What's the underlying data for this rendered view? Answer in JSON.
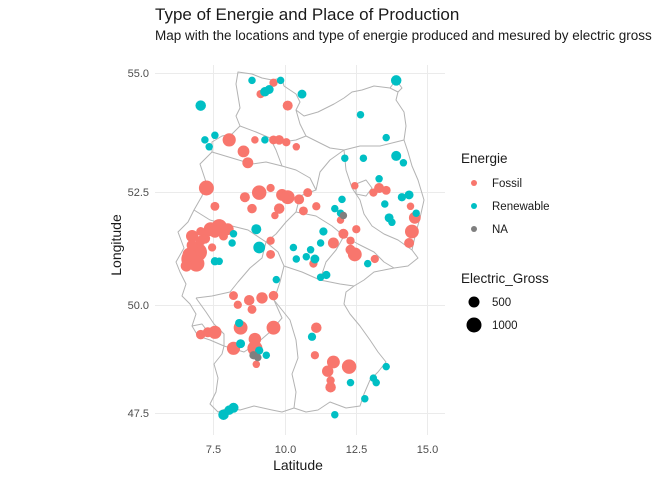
{
  "title": "Type of Energie and Place of Production",
  "subtitle": "Map with the locations and type of energie produced and mesured by electric gross",
  "chart_data": {
    "type": "scatter",
    "title": "Type of Energie and Place of Production",
    "subtitle": "Map with the locations and type of energie produced and mesured by electric gross",
    "xlabel": "Latitude",
    "ylabel": "Longitude",
    "xlim": [
      5.6,
      15.5
    ],
    "ylim": [
      47.0,
      55.3
    ],
    "x_ticks": [
      7.5,
      10.0,
      12.5,
      15.0
    ],
    "x_tick_labels": [
      "7.5",
      "10.0",
      "12.5",
      "15.0"
    ],
    "y_ticks": [
      47.5,
      50.0,
      52.5,
      55.0
    ],
    "y_tick_labels": [
      "47.5",
      "50.0",
      "52.5",
      "55.0"
    ],
    "grid": true,
    "legend_position": "right",
    "colors": {
      "Fossil": "#F8766D",
      "Renewable": "#00BFC4",
      "NA": "#7F7F7F",
      "border": "#b3b3b3"
    },
    "legends": {
      "color": {
        "title": "Energie",
        "entries": [
          "Fossil",
          "Renewable",
          "NA"
        ]
      },
      "size": {
        "title": "Electric_Gross",
        "entries": [
          {
            "label": "500",
            "value": 500
          },
          {
            "label": "1000",
            "value": 1000
          }
        ]
      }
    },
    "series": [
      {
        "name": "Fossil",
        "points": [
          {
            "x": 6.7,
            "y": 50.95,
            "v": 1800
          },
          {
            "x": 6.95,
            "y": 51.1,
            "v": 1700
          },
          {
            "x": 6.9,
            "y": 50.85,
            "v": 1200
          },
          {
            "x": 6.65,
            "y": 51.05,
            "v": 700
          },
          {
            "x": 6.55,
            "y": 50.8,
            "v": 450
          },
          {
            "x": 6.75,
            "y": 51.45,
            "v": 550
          },
          {
            "x": 6.75,
            "y": 51.25,
            "v": 400
          },
          {
            "x": 7.05,
            "y": 51.35,
            "v": 300
          },
          {
            "x": 7.2,
            "y": 51.4,
            "v": 350
          },
          {
            "x": 7.4,
            "y": 51.6,
            "v": 800
          },
          {
            "x": 7.7,
            "y": 51.65,
            "v": 1100
          },
          {
            "x": 7.55,
            "y": 51.55,
            "v": 600
          },
          {
            "x": 8.0,
            "y": 51.6,
            "v": 500
          },
          {
            "x": 7.85,
            "y": 51.45,
            "v": 200
          },
          {
            "x": 7.3,
            "y": 51.55,
            "v": 250
          },
          {
            "x": 7.45,
            "y": 51.2,
            "v": 150
          },
          {
            "x": 7.05,
            "y": 51.55,
            "v": 200
          },
          {
            "x": 7.25,
            "y": 52.5,
            "v": 1000
          },
          {
            "x": 7.55,
            "y": 52.1,
            "v": 200
          },
          {
            "x": 8.05,
            "y": 53.55,
            "v": 700
          },
          {
            "x": 8.55,
            "y": 53.3,
            "v": 500
          },
          {
            "x": 8.7,
            "y": 53.05,
            "v": 400
          },
          {
            "x": 8.95,
            "y": 53.55,
            "v": 100
          },
          {
            "x": 9.6,
            "y": 53.55,
            "v": 200
          },
          {
            "x": 9.8,
            "y": 53.55,
            "v": 250
          },
          {
            "x": 10.05,
            "y": 53.5,
            "v": 150
          },
          {
            "x": 10.4,
            "y": 53.4,
            "v": 100
          },
          {
            "x": 10.1,
            "y": 54.3,
            "v": 300
          },
          {
            "x": 9.15,
            "y": 54.55,
            "v": 150
          },
          {
            "x": 9.6,
            "y": 54.8,
            "v": 150
          },
          {
            "x": 9.1,
            "y": 52.4,
            "v": 900
          },
          {
            "x": 8.6,
            "y": 52.3,
            "v": 300
          },
          {
            "x": 8.85,
            "y": 52.05,
            "v": 250
          },
          {
            "x": 9.9,
            "y": 52.35,
            "v": 500
          },
          {
            "x": 10.1,
            "y": 52.3,
            "v": 800
          },
          {
            "x": 9.8,
            "y": 52.05,
            "v": 350
          },
          {
            "x": 10.5,
            "y": 52.25,
            "v": 300
          },
          {
            "x": 10.8,
            "y": 52.4,
            "v": 200
          },
          {
            "x": 11.1,
            "y": 52.1,
            "v": 150
          },
          {
            "x": 9.5,
            "y": 52.5,
            "v": 150
          },
          {
            "x": 10.65,
            "y": 52.0,
            "v": 200
          },
          {
            "x": 9.65,
            "y": 51.9,
            "v": 100
          },
          {
            "x": 11.7,
            "y": 51.3,
            "v": 400
          },
          {
            "x": 12.05,
            "y": 51.5,
            "v": 300
          },
          {
            "x": 12.3,
            "y": 51.15,
            "v": 300
          },
          {
            "x": 12.45,
            "y": 51.05,
            "v": 800
          },
          {
            "x": 12.3,
            "y": 51.35,
            "v": 150
          },
          {
            "x": 12.5,
            "y": 51.6,
            "v": 150
          },
          {
            "x": 11.95,
            "y": 51.8,
            "v": 100
          },
          {
            "x": 12.45,
            "y": 52.55,
            "v": 100
          },
          {
            "x": 13.1,
            "y": 52.4,
            "v": 150
          },
          {
            "x": 13.3,
            "y": 52.5,
            "v": 300
          },
          {
            "x": 13.55,
            "y": 52.45,
            "v": 200
          },
          {
            "x": 14.45,
            "y": 51.55,
            "v": 800
          },
          {
            "x": 14.55,
            "y": 51.85,
            "v": 500
          },
          {
            "x": 14.35,
            "y": 51.3,
            "v": 300
          },
          {
            "x": 14.4,
            "y": 52.1,
            "v": 100
          },
          {
            "x": 13.15,
            "y": 50.95,
            "v": 150
          },
          {
            "x": 11.0,
            "y": 50.85,
            "v": 150
          },
          {
            "x": 9.5,
            "y": 51.35,
            "v": 150
          },
          {
            "x": 9.5,
            "y": 51.05,
            "v": 200
          },
          {
            "x": 8.2,
            "y": 50.15,
            "v": 200
          },
          {
            "x": 8.35,
            "y": 49.95,
            "v": 150
          },
          {
            "x": 8.75,
            "y": 50.05,
            "v": 350
          },
          {
            "x": 8.85,
            "y": 49.85,
            "v": 200
          },
          {
            "x": 9.2,
            "y": 50.1,
            "v": 450
          },
          {
            "x": 9.6,
            "y": 50.15,
            "v": 250
          },
          {
            "x": 8.45,
            "y": 49.45,
            "v": 800
          },
          {
            "x": 8.2,
            "y": 49.0,
            "v": 700
          },
          {
            "x": 8.95,
            "y": 49.0,
            "v": 1000
          },
          {
            "x": 8.95,
            "y": 49.2,
            "v": 600
          },
          {
            "x": 9.6,
            "y": 49.45,
            "v": 800
          },
          {
            "x": 7.05,
            "y": 49.3,
            "v": 250
          },
          {
            "x": 7.55,
            "y": 49.35,
            "v": 700
          },
          {
            "x": 7.3,
            "y": 49.35,
            "v": 300
          },
          {
            "x": 11.1,
            "y": 49.45,
            "v": 350
          },
          {
            "x": 11.05,
            "y": 48.85,
            "v": 150
          },
          {
            "x": 11.7,
            "y": 48.7,
            "v": 650
          },
          {
            "x": 11.5,
            "y": 48.5,
            "v": 450
          },
          {
            "x": 12.25,
            "y": 48.6,
            "v": 900
          },
          {
            "x": 11.6,
            "y": 48.15,
            "v": 350
          },
          {
            "x": 11.6,
            "y": 48.3,
            "v": 150
          },
          {
            "x": 9.0,
            "y": 48.65,
            "v": 100
          }
        ]
      },
      {
        "name": "Renewable",
        "points": [
          {
            "x": 13.9,
            "y": 54.85,
            "v": 350
          },
          {
            "x": 7.05,
            "y": 54.3,
            "v": 350
          },
          {
            "x": 9.3,
            "y": 54.6,
            "v": 250
          },
          {
            "x": 9.45,
            "y": 54.65,
            "v": 200
          },
          {
            "x": 10.6,
            "y": 54.55,
            "v": 200
          },
          {
            "x": 8.85,
            "y": 54.85,
            "v": 100
          },
          {
            "x": 9.85,
            "y": 54.85,
            "v": 100
          },
          {
            "x": 12.65,
            "y": 54.1,
            "v": 100
          },
          {
            "x": 13.55,
            "y": 53.6,
            "v": 100
          },
          {
            "x": 13.9,
            "y": 53.2,
            "v": 300
          },
          {
            "x": 14.15,
            "y": 53.05,
            "v": 100
          },
          {
            "x": 7.55,
            "y": 53.65,
            "v": 100
          },
          {
            "x": 7.2,
            "y": 53.55,
            "v": 100
          },
          {
            "x": 7.35,
            "y": 53.4,
            "v": 100
          },
          {
            "x": 9.3,
            "y": 53.55,
            "v": 100
          },
          {
            "x": 12.1,
            "y": 53.15,
            "v": 100
          },
          {
            "x": 12.75,
            "y": 53.15,
            "v": 100
          },
          {
            "x": 13.3,
            "y": 52.7,
            "v": 100
          },
          {
            "x": 14.35,
            "y": 52.35,
            "v": 200
          },
          {
            "x": 14.1,
            "y": 52.3,
            "v": 150
          },
          {
            "x": 13.5,
            "y": 52.15,
            "v": 100
          },
          {
            "x": 13.65,
            "y": 51.85,
            "v": 200
          },
          {
            "x": 13.75,
            "y": 51.75,
            "v": 100
          },
          {
            "x": 14.6,
            "y": 51.95,
            "v": 100
          },
          {
            "x": 12.0,
            "y": 52.25,
            "v": 100
          },
          {
            "x": 11.75,
            "y": 52.05,
            "v": 100
          },
          {
            "x": 11.95,
            "y": 51.95,
            "v": 100
          },
          {
            "x": 11.35,
            "y": 51.55,
            "v": 150
          },
          {
            "x": 11.25,
            "y": 51.3,
            "v": 100
          },
          {
            "x": 10.9,
            "y": 51.15,
            "v": 100
          },
          {
            "x": 11.05,
            "y": 50.95,
            "v": 200
          },
          {
            "x": 10.3,
            "y": 51.2,
            "v": 100
          },
          {
            "x": 10.75,
            "y": 51.0,
            "v": 100
          },
          {
            "x": 11.45,
            "y": 50.6,
            "v": 150
          },
          {
            "x": 11.25,
            "y": 50.55,
            "v": 100
          },
          {
            "x": 9.1,
            "y": 51.2,
            "v": 500
          },
          {
            "x": 9.0,
            "y": 51.6,
            "v": 300
          },
          {
            "x": 8.2,
            "y": 51.5,
            "v": 100
          },
          {
            "x": 7.55,
            "y": 50.9,
            "v": 150
          },
          {
            "x": 7.7,
            "y": 50.9,
            "v": 100
          },
          {
            "x": 8.15,
            "y": 51.3,
            "v": 100
          },
          {
            "x": 8.4,
            "y": 49.55,
            "v": 150
          },
          {
            "x": 8.45,
            "y": 49.1,
            "v": 200
          },
          {
            "x": 9.35,
            "y": 48.85,
            "v": 100
          },
          {
            "x": 9.1,
            "y": 48.95,
            "v": 150
          },
          {
            "x": 8.2,
            "y": 47.7,
            "v": 300
          },
          {
            "x": 8.05,
            "y": 47.65,
            "v": 250
          },
          {
            "x": 7.85,
            "y": 47.55,
            "v": 350
          },
          {
            "x": 12.3,
            "y": 48.25,
            "v": 100
          },
          {
            "x": 13.1,
            "y": 48.35,
            "v": 100
          },
          {
            "x": 13.2,
            "y": 48.25,
            "v": 100
          },
          {
            "x": 13.55,
            "y": 48.6,
            "v": 100
          },
          {
            "x": 12.8,
            "y": 47.9,
            "v": 100
          },
          {
            "x": 11.75,
            "y": 47.55,
            "v": 100
          },
          {
            "x": 10.95,
            "y": 49.25,
            "v": 150
          },
          {
            "x": 12.9,
            "y": 50.85,
            "v": 100
          },
          {
            "x": 10.4,
            "y": 50.95,
            "v": 100
          },
          {
            "x": 9.7,
            "y": 50.5,
            "v": 100
          }
        ]
      },
      {
        "name": "NA",
        "points": [
          {
            "x": 12.05,
            "y": 51.9,
            "v": 100
          },
          {
            "x": 8.9,
            "y": 48.85,
            "v": 150
          },
          {
            "x": 9.05,
            "y": 48.8,
            "v": 100
          }
        ]
      }
    ]
  }
}
